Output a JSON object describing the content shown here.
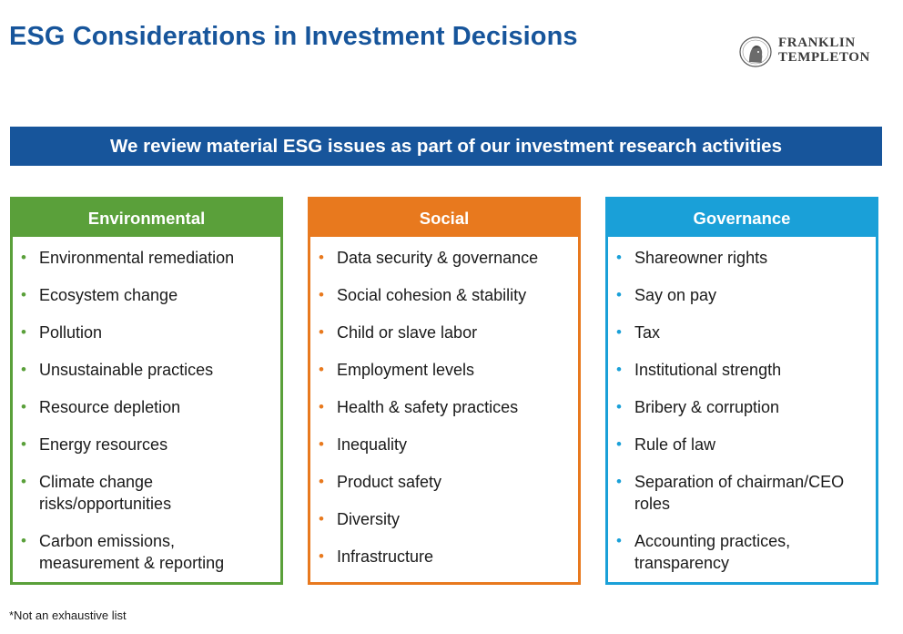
{
  "title": "ESG Considerations in Investment Decisions",
  "logo": {
    "line1": "FRANKLIN",
    "line2": "TEMPLETON"
  },
  "banner": "We review material ESG issues as part of our investment research activities",
  "columns": {
    "environmental": {
      "header": "Environmental",
      "color": "#5aa03a",
      "items": [
        "Environmental remediation",
        "Ecosystem change",
        "Pollution",
        "Unsustainable practices",
        "Resource depletion",
        "Energy resources",
        "Climate change risks/opportunities",
        "Carbon emissions, measurement & reporting"
      ]
    },
    "social": {
      "header": "Social",
      "color": "#e8791e",
      "items": [
        "Data security & governance",
        "Social cohesion & stability",
        "Child or slave labor",
        "Employment levels",
        "Health & safety practices",
        "Inequality",
        "Product safety",
        "Diversity",
        "Infrastructure"
      ]
    },
    "governance": {
      "header": "Governance",
      "color": "#1aa0d8",
      "items": [
        "Shareowner rights",
        "Say on pay",
        "Tax",
        "Institutional strength",
        "Bribery & corruption",
        "Rule of law",
        "Separation of chairman/CEO roles",
        "Accounting practices, transparency"
      ]
    }
  },
  "footnote": "*Not an exhaustive list",
  "colors": {
    "title": "#17559b",
    "banner": "#17559b"
  }
}
